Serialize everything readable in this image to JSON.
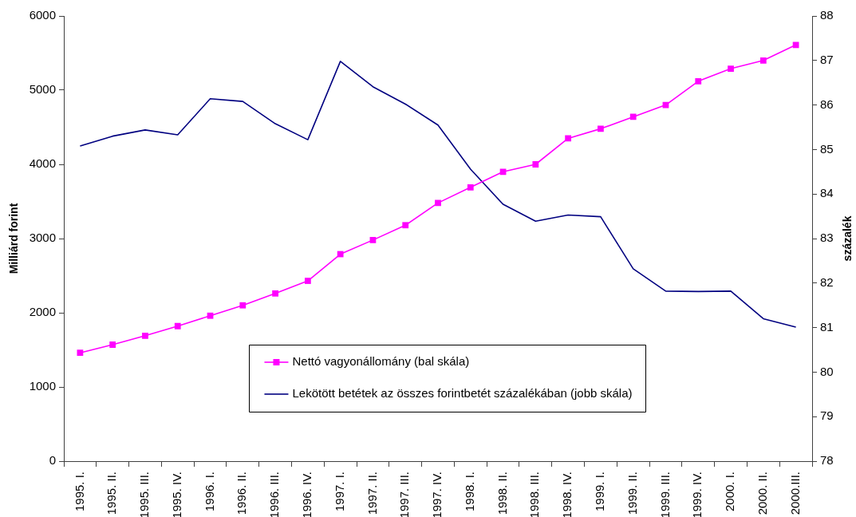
{
  "chart_data": {
    "type": "line",
    "categories": [
      "1995. I.",
      "1995. II.",
      "1995. III.",
      "1995. IV.",
      "1996. I.",
      "1996. II.",
      "1996. III.",
      "1996. IV.",
      "1997. I.",
      "1997. II.",
      "1997. III.",
      "1997. IV.",
      "1998. I.",
      "1998. II.",
      "1998. III.",
      "1998. IV.",
      "1999. I.",
      "1999. II.",
      "1999. III.",
      "1999. IV.",
      "2000. I.",
      "2000. II.",
      "2000.III."
    ],
    "ylabel": "Milliárd forint",
    "y2label": "százalék",
    "ylim": [
      0,
      6000
    ],
    "yticks": [
      0,
      1000,
      2000,
      3000,
      4000,
      5000,
      6000
    ],
    "y2lim": [
      78,
      88
    ],
    "y2ticks": [
      78,
      79,
      80,
      81,
      82,
      83,
      84,
      85,
      86,
      87,
      88
    ],
    "legend": "bottom",
    "series": [
      {
        "name": "Nettó vagyonállomány (bal skála)",
        "color": "#ff00ff",
        "marker": "square",
        "values": [
          1460,
          1570,
          1690,
          1820,
          1960,
          2100,
          2260,
          2430,
          2790,
          2980,
          3180,
          3480,
          3690,
          3900,
          4000,
          4350,
          4480,
          4640,
          4800,
          5120,
          5290,
          5400,
          5610
        ]
      },
      {
        "name": "Lekötött betétek az összes forintbetét százalékában (jobb skála)",
        "color": "#000080",
        "axis": "y2",
        "marker": "none",
        "values": [
          85.08,
          85.3,
          85.44,
          85.33,
          86.14,
          86.08,
          85.58,
          85.22,
          86.98,
          86.41,
          86.02,
          85.55,
          84.56,
          83.77,
          83.39,
          83.53,
          83.49,
          82.32,
          81.82,
          81.81,
          81.82,
          81.2,
          81.01
        ]
      }
    ]
  }
}
